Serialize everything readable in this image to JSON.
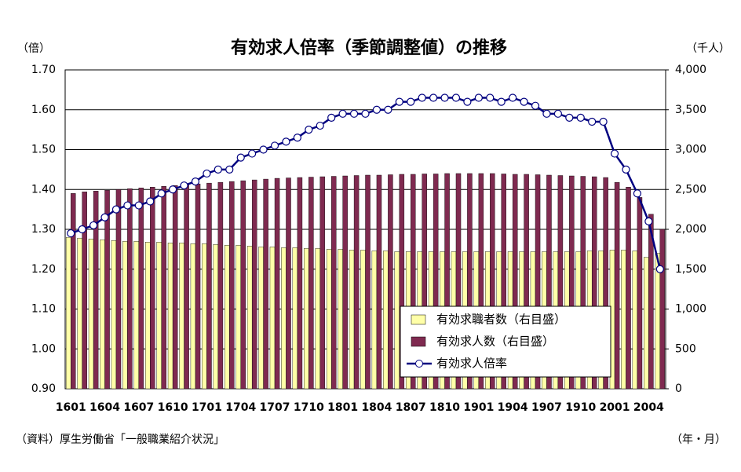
{
  "chart_data": {
    "type": "bar",
    "title": "有効求人倍率（季節調整値）の推移",
    "y_label": "（倍）",
    "y2_label": "（千人）",
    "x_label": "（年・月）",
    "source": "（資料）厚生労働省「一般職業紹介状況」",
    "categories": [
      "1601",
      null,
      null,
      "1604",
      null,
      null,
      "1607",
      null,
      null,
      "1610",
      null,
      null,
      "1701",
      null,
      null,
      "1704",
      null,
      null,
      "1707",
      null,
      null,
      "1710",
      null,
      null,
      "1801",
      null,
      null,
      "1804",
      null,
      null,
      "1807",
      null,
      null,
      "1810",
      null,
      null,
      "1901",
      null,
      null,
      "1904",
      null,
      null,
      "1907",
      null,
      null,
      "1910",
      null,
      null,
      "2001",
      null,
      null,
      "2004",
      null
    ],
    "series": [
      {
        "name": "有効求職者数（右目盛）",
        "type": "bar",
        "axis": "y2",
        "color": "#ffffa8",
        "values": [
          1900,
          1890,
          1880,
          1870,
          1860,
          1850,
          1850,
          1840,
          1840,
          1830,
          1830,
          1820,
          1820,
          1810,
          1800,
          1800,
          1790,
          1780,
          1780,
          1770,
          1770,
          1760,
          1760,
          1750,
          1750,
          1740,
          1740,
          1730,
          1730,
          1720,
          1720,
          1720,
          1720,
          1720,
          1720,
          1720,
          1720,
          1720,
          1720,
          1720,
          1720,
          1720,
          1720,
          1720,
          1720,
          1720,
          1730,
          1730,
          1740,
          1740,
          1730,
          1650,
          1700
        ]
      },
      {
        "name": "有効求人数（右目盛）",
        "type": "bar",
        "axis": "y2",
        "color": "#7f2a50",
        "values": [
          2450,
          2470,
          2480,
          2490,
          2500,
          2510,
          2520,
          2530,
          2540,
          2550,
          2560,
          2570,
          2580,
          2590,
          2600,
          2610,
          2620,
          2630,
          2640,
          2645,
          2650,
          2655,
          2660,
          2665,
          2670,
          2675,
          2680,
          2680,
          2685,
          2690,
          2690,
          2695,
          2695,
          2700,
          2700,
          2700,
          2700,
          2700,
          2695,
          2690,
          2690,
          2685,
          2680,
          2675,
          2670,
          2665,
          2660,
          2650,
          2590,
          2530,
          2400,
          2190,
          2000
        ]
      },
      {
        "name": "有効求人倍率",
        "type": "line",
        "axis": "y",
        "color": "#000080",
        "values": [
          1.29,
          1.3,
          1.31,
          1.33,
          1.35,
          1.36,
          1.36,
          1.37,
          1.39,
          1.4,
          1.41,
          1.42,
          1.44,
          1.45,
          1.45,
          1.48,
          1.49,
          1.5,
          1.51,
          1.52,
          1.53,
          1.55,
          1.56,
          1.58,
          1.59,
          1.59,
          1.59,
          1.6,
          1.6,
          1.62,
          1.62,
          1.63,
          1.63,
          1.63,
          1.63,
          1.62,
          1.63,
          1.63,
          1.62,
          1.63,
          1.62,
          1.61,
          1.59,
          1.59,
          1.58,
          1.58,
          1.57,
          1.57,
          1.49,
          1.45,
          1.39,
          1.32,
          1.2
        ]
      }
    ],
    "ylim": [
      0.9,
      1.7
    ],
    "yticks": [
      {
        "value": 0.9,
        "label": "0.90"
      },
      {
        "value": 1.0,
        "label": "1.00"
      },
      {
        "value": 1.1,
        "label": "1.10"
      },
      {
        "value": 1.2,
        "label": "1.20"
      },
      {
        "value": 1.3,
        "label": "1.30"
      },
      {
        "value": 1.4,
        "label": "1.40"
      },
      {
        "value": 1.5,
        "label": "1.50"
      },
      {
        "value": 1.6,
        "label": "1.60"
      },
      {
        "value": 1.7,
        "label": "1.70"
      }
    ],
    "y2lim": [
      0,
      4000
    ],
    "y2ticks": [
      0,
      500,
      {
        "value": 1000,
        "label": "1,000"
      },
      {
        "value": 1500,
        "label": "1,500"
      },
      {
        "value": 2000,
        "label": "2,000"
      },
      {
        "value": 2500,
        "label": "2,500"
      },
      {
        "value": 3000,
        "label": "3,000"
      },
      {
        "value": 3500,
        "label": "3,500"
      },
      {
        "value": 4000,
        "label": "4,000"
      }
    ],
    "grid": true,
    "legend": "lower right"
  }
}
